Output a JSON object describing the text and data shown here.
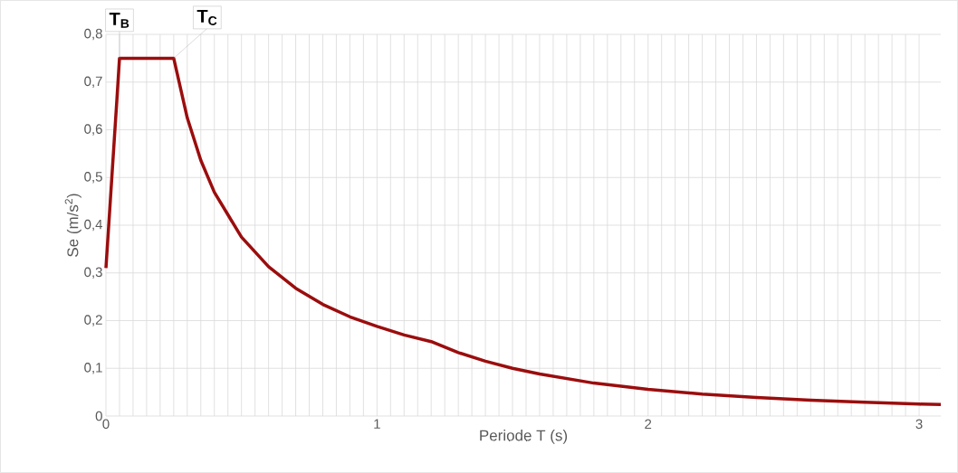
{
  "chart_data": {
    "type": "line",
    "xlabel": "Periode T (s)",
    "ylabel": "Se (m/s$^{2}$)",
    "x": [
      0,
      0.04,
      0.05,
      0.25,
      0.3,
      0.35,
      0.4,
      0.5,
      0.6,
      0.7,
      0.8,
      0.9,
      1.0,
      1.1,
      1.2,
      1.3,
      1.4,
      1.5,
      1.6,
      1.8,
      2.0,
      2.2,
      2.4,
      2.6,
      2.8,
      3.0,
      3.08
    ],
    "series": [
      {
        "color": "#9b0d0d",
        "values": [
          0.31,
          0.66,
          0.75,
          0.75,
          0.625,
          0.536,
          0.469,
          0.375,
          0.313,
          0.268,
          0.234,
          0.208,
          0.188,
          0.17,
          0.156,
          0.133,
          0.115,
          0.1,
          0.088,
          0.069,
          0.056,
          0.046,
          0.039,
          0.033,
          0.029,
          0.025,
          0.024
        ]
      }
    ],
    "xlim": [
      0,
      3.08
    ],
    "xticks": [
      0,
      1,
      2,
      3
    ],
    "ylim": [
      0,
      0.8
    ],
    "yticks": [
      0,
      {
        "value": 0.1,
        "label": "0,1"
      },
      {
        "value": 0.2,
        "label": "0,2"
      },
      {
        "value": 0.3,
        "label": "0,3"
      },
      {
        "value": 0.4,
        "label": "0,4"
      },
      {
        "value": 0.5,
        "label": "0,5"
      },
      {
        "value": 0.6,
        "label": "0,6"
      },
      {
        "value": 0.7,
        "label": "0,7"
      },
      {
        "value": 0.8,
        "label": "0,8"
      }
    ],
    "grid": true,
    "marker": "none",
    "line_style": "solid",
    "annotations": [
      {
        "text": "T$_{B}$",
        "x": 0.05,
        "y": 0.75
      },
      {
        "text": "T$_{C}$",
        "x": 0.25,
        "y": 0.75
      }
    ]
  }
}
